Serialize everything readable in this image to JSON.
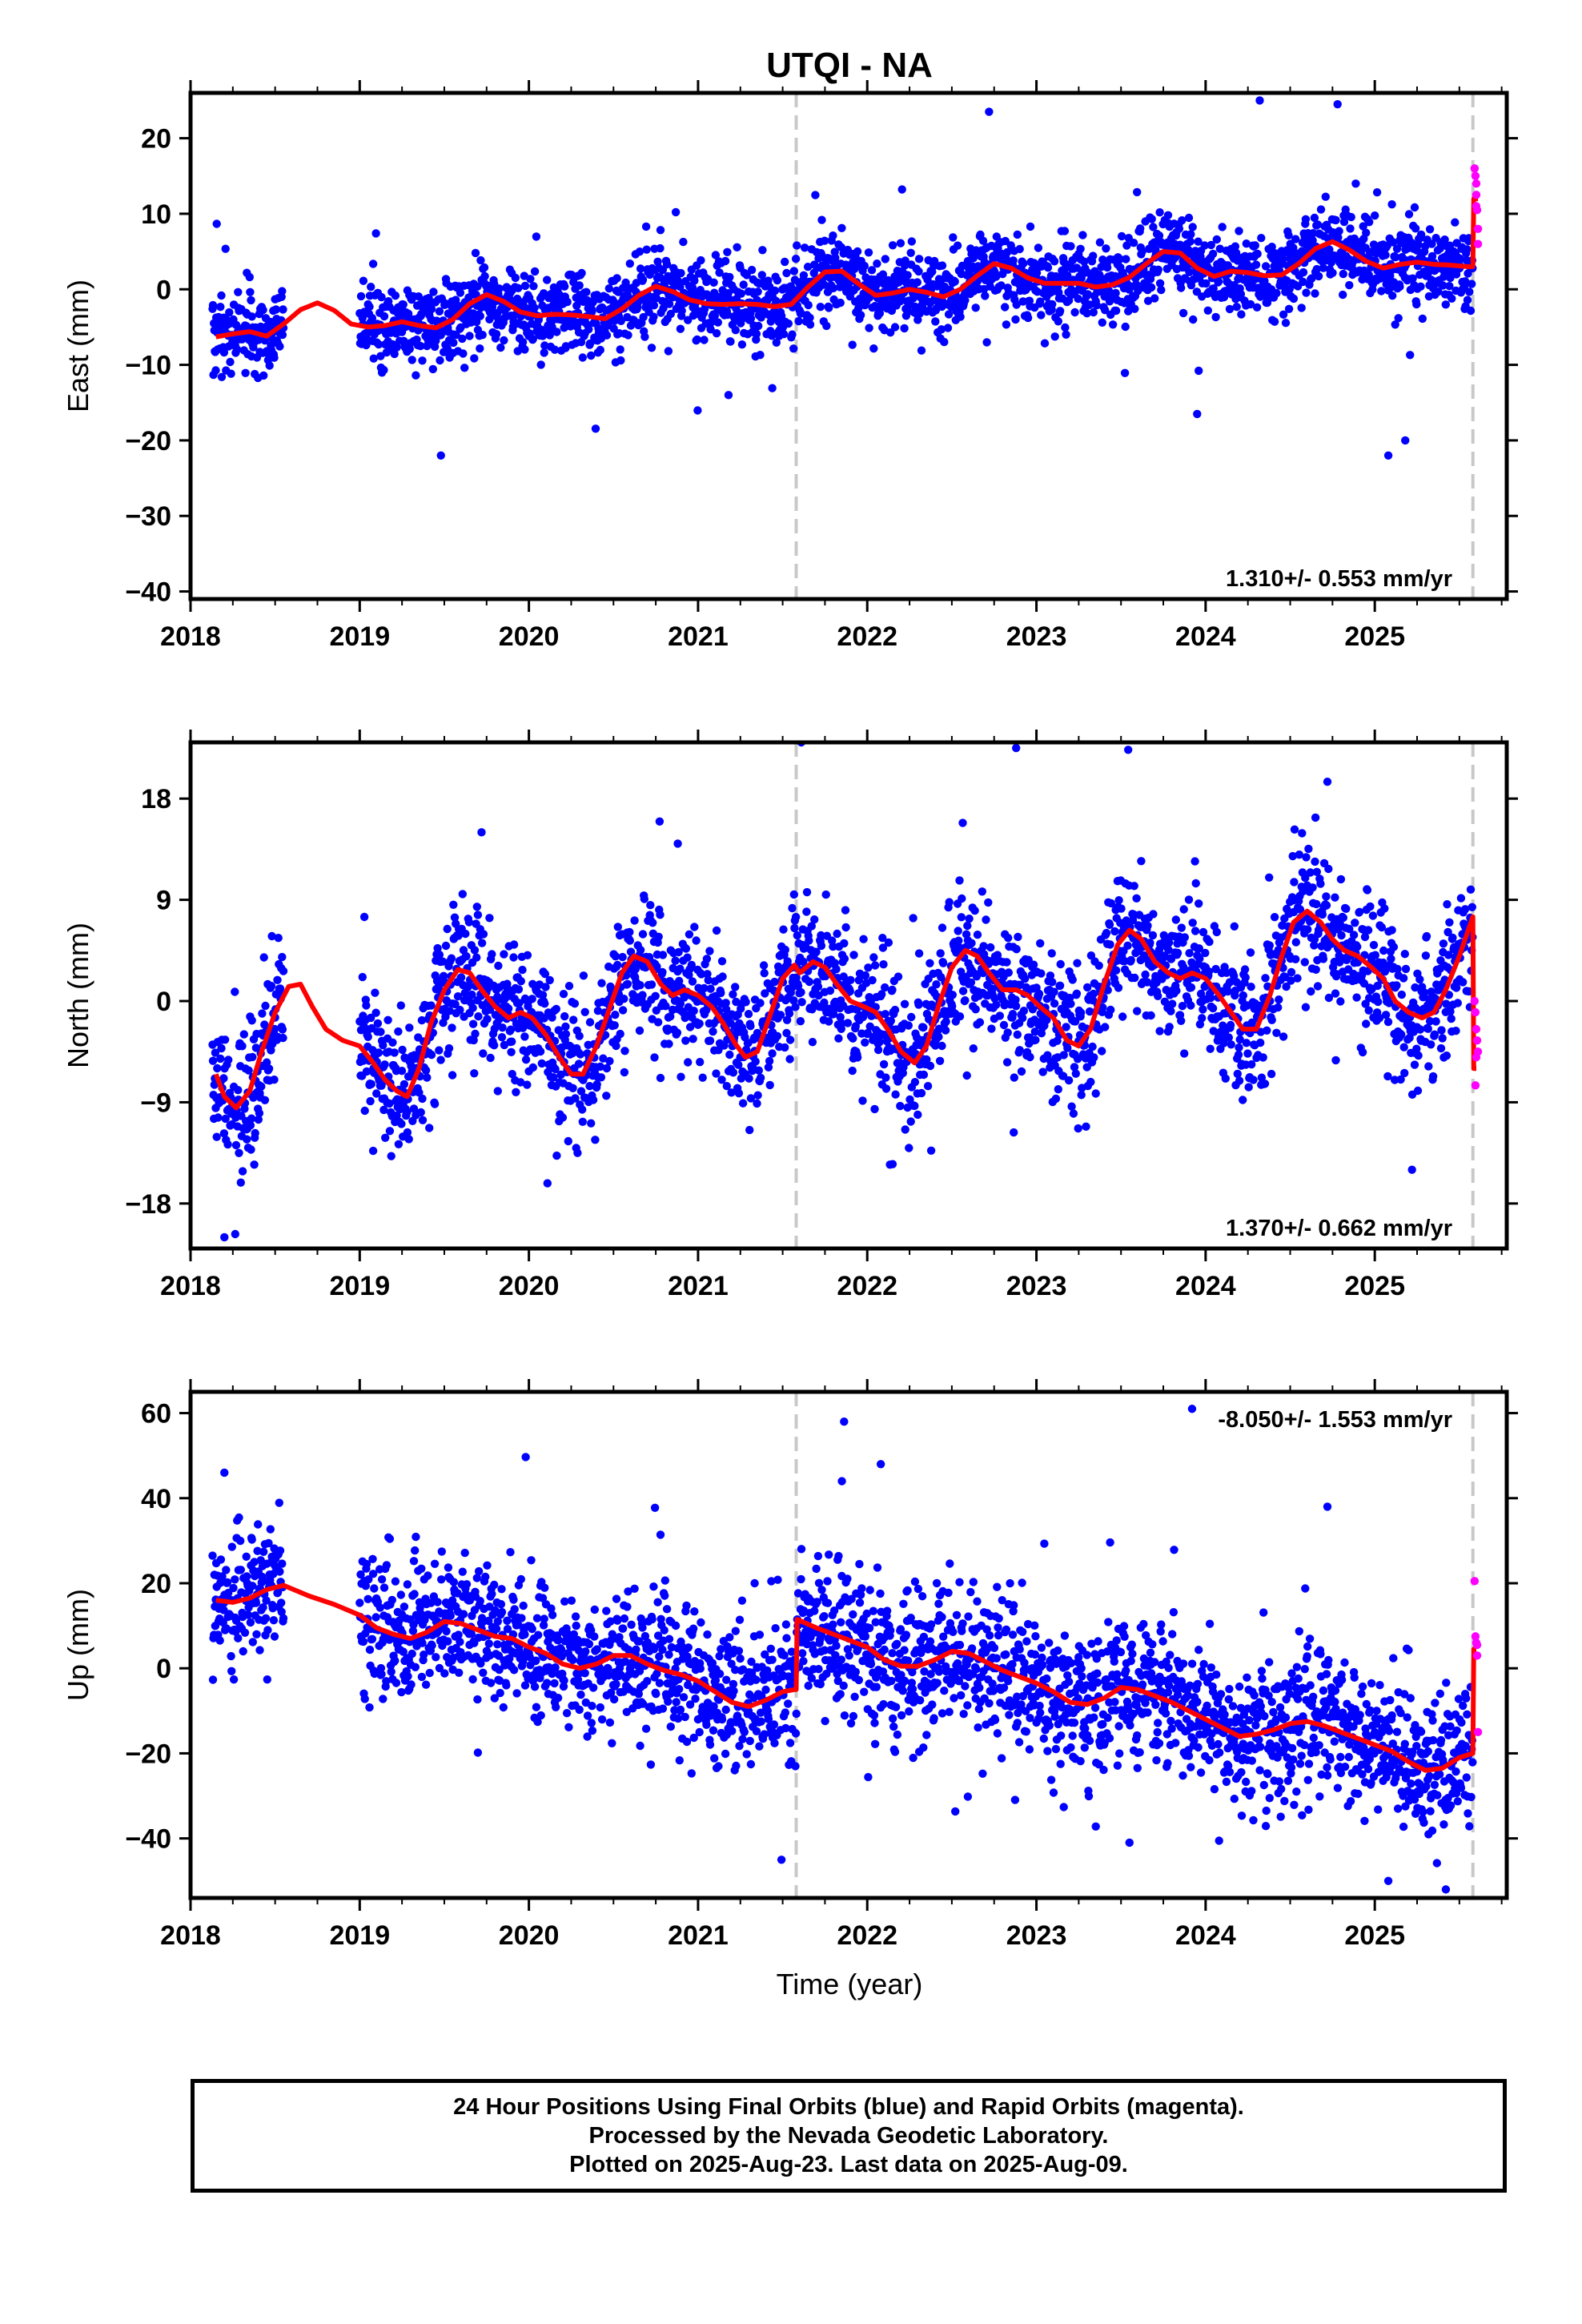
{
  "title": "UTQI - NA",
  "xlabel": "Time (year)",
  "caption": [
    "24 Hour Positions Using Final Orbits (blue) and Rapid Orbits (magenta).",
    "Processed by the Nevada Geodetic Laboratory.",
    "Plotted on 2025-Aug-23. Last data on 2025-Aug-09."
  ],
  "colors": {
    "final": "#0000ff",
    "rapid": "#ff00ff",
    "model": "#ff0000",
    "break_line": "#c8c8c8",
    "axis": "#000000"
  },
  "chart_data": [
    {
      "type": "scatter",
      "component": "east",
      "ylabel": "East (mm)",
      "rate_label": "1.310+/- 0.553 mm/yr",
      "xlim": [
        2018.0,
        2025.78
      ],
      "ylim": [
        -41,
        26
      ],
      "yticks": [
        -40,
        -30,
        -20,
        -10,
        0,
        10,
        20
      ],
      "xticks": [
        2018,
        2019,
        2020,
        2021,
        2022,
        2023,
        2024,
        2025
      ],
      "breaks": [
        2021.58,
        2025.58
      ],
      "model": {
        "x": [
          2018.15,
          2018.25,
          2018.35,
          2018.45,
          2018.55,
          2018.65,
          2018.75,
          2018.85,
          2018.95,
          2019.05,
          2019.15,
          2019.25,
          2019.35,
          2019.45,
          2019.55,
          2019.65,
          2019.75,
          2019.85,
          2019.95,
          2020.05,
          2020.15,
          2020.25,
          2020.35,
          2020.45,
          2020.55,
          2020.65,
          2020.75,
          2020.85,
          2020.95,
          2021.05,
          2021.15,
          2021.25,
          2021.35,
          2021.45,
          2021.55,
          2021.65,
          2021.75,
          2021.85,
          2021.95,
          2022.05,
          2022.15,
          2022.25,
          2022.35,
          2022.45,
          2022.55,
          2022.65,
          2022.75,
          2022.85,
          2022.95,
          2023.05,
          2023.15,
          2023.25,
          2023.35,
          2023.45,
          2023.55,
          2023.65,
          2023.75,
          2023.85,
          2023.95,
          2024.05,
          2024.15,
          2024.25,
          2024.35,
          2024.45,
          2024.55,
          2024.65,
          2024.75,
          2024.85,
          2024.95,
          2025.05,
          2025.15,
          2025.25,
          2025.35,
          2025.45,
          2025.55,
          2025.58,
          2025.585,
          2025.61
        ],
        "y": [
          -6.3,
          -5.9,
          -5.6,
          -6.2,
          -4.6,
          -2.7,
          -1.8,
          -2.8,
          -4.6,
          -5.0,
          -4.8,
          -4.3,
          -4.8,
          -5.1,
          -4.0,
          -1.9,
          -0.7,
          -1.6,
          -3.0,
          -3.5,
          -3.3,
          -3.4,
          -3.6,
          -3.9,
          -2.6,
          -0.8,
          0.4,
          -0.3,
          -1.4,
          -1.9,
          -2.0,
          -1.9,
          -2.0,
          -2.3,
          -2.0,
          0.3,
          2.3,
          2.4,
          0.7,
          -0.8,
          -0.5,
          0.0,
          -0.4,
          -1.0,
          0.0,
          1.8,
          3.4,
          2.8,
          1.5,
          0.8,
          0.8,
          0.8,
          0.3,
          0.6,
          1.6,
          3.4,
          5.0,
          4.8,
          2.8,
          1.7,
          2.4,
          2.2,
          1.8,
          1.9,
          3.4,
          5.4,
          6.3,
          5.2,
          3.7,
          2.8,
          3.3,
          3.6,
          3.3,
          3.2,
          3.0,
          3.0,
          12.0,
          12.0
        ]
      },
      "rapid": {
        "x": [
          2025.59,
          2025.595,
          2025.6,
          2025.6,
          2025.605,
          2025.61,
          2025.61,
          2025.6
        ],
        "y": [
          16.0,
          15.0,
          14.0,
          12.5,
          10.5,
          8.0,
          6.0,
          11.0
        ]
      },
      "notable_points": {
        "x": [
          2019.48,
          2024.32,
          2024.78,
          2025.08,
          2021.18,
          2023.95,
          2025.18,
          2022.72
        ],
        "y": [
          -22.0,
          25.0,
          24.5,
          -22.0,
          -14.0,
          -16.5,
          -20.0,
          23.5
        ]
      }
    },
    {
      "type": "scatter",
      "component": "north",
      "ylabel": "North (mm)",
      "rate_label": "1.370+/- 0.662 mm/yr",
      "xlim": [
        2018.0,
        2025.78
      ],
      "ylim": [
        -22,
        23
      ],
      "yticks": [
        -18,
        -9,
        0,
        9,
        18
      ],
      "xticks": [
        2018,
        2019,
        2020,
        2021,
        2022,
        2023,
        2024,
        2025
      ],
      "breaks": [
        2021.58,
        2025.58
      ],
      "model": {
        "x": [
          2018.15,
          2018.2,
          2018.27,
          2018.35,
          2018.42,
          2018.5,
          2018.58,
          2018.65,
          2018.72,
          2018.8,
          2018.9,
          2019.0,
          2019.08,
          2019.15,
          2019.22,
          2019.28,
          2019.35,
          2019.42,
          2019.5,
          2019.58,
          2019.65,
          2019.72,
          2019.8,
          2019.88,
          2019.95,
          2020.02,
          2020.1,
          2020.18,
          2020.25,
          2020.32,
          2020.4,
          2020.48,
          2020.55,
          2020.62,
          2020.7,
          2020.78,
          2020.85,
          2020.92,
          2021.0,
          2021.08,
          2021.15,
          2021.22,
          2021.28,
          2021.35,
          2021.42,
          2021.5,
          2021.57,
          2021.6,
          2021.68,
          2021.75,
          2021.82,
          2021.9,
          2021.98,
          2022.05,
          2022.12,
          2022.2,
          2022.28,
          2022.35,
          2022.42,
          2022.5,
          2022.58,
          2022.65,
          2022.72,
          2022.8,
          2022.88,
          2022.95,
          2023.02,
          2023.1,
          2023.18,
          2023.25,
          2023.32,
          2023.4,
          2023.48,
          2023.55,
          2023.62,
          2023.7,
          2023.78,
          2023.85,
          2023.92,
          2024.0,
          2024.08,
          2024.15,
          2024.22,
          2024.3,
          2024.38,
          2024.45,
          2024.52,
          2024.6,
          2024.68,
          2024.75,
          2024.82,
          2024.9,
          2024.98,
          2025.05,
          2025.12,
          2025.2,
          2025.28,
          2025.35,
          2025.42,
          2025.5,
          2025.58,
          2025.585,
          2025.6
        ],
        "y": [
          -6.5,
          -8.5,
          -9.5,
          -8.0,
          -4.5,
          -1.0,
          1.3,
          1.5,
          -0.5,
          -2.5,
          -3.5,
          -4.0,
          -5.5,
          -7.0,
          -8.0,
          -8.5,
          -6.0,
          -2.0,
          1.0,
          2.8,
          2.5,
          1.0,
          -0.5,
          -1.5,
          -1.0,
          -1.5,
          -3.0,
          -5.0,
          -6.5,
          -6.5,
          -4.0,
          -0.5,
          2.5,
          4.0,
          3.5,
          1.5,
          0.5,
          1.0,
          0.5,
          -0.5,
          -2.0,
          -3.8,
          -5.0,
          -4.5,
          -1.5,
          2.0,
          3.2,
          2.5,
          3.5,
          3.0,
          1.5,
          0.0,
          -0.5,
          -1.0,
          -2.5,
          -4.5,
          -5.5,
          -4.0,
          -0.5,
          3.0,
          4.5,
          4.0,
          2.5,
          1.0,
          1.0,
          0.5,
          -0.5,
          -1.5,
          -3.5,
          -4.0,
          -2.5,
          1.5,
          5.0,
          6.3,
          5.5,
          3.5,
          2.5,
          2.0,
          2.5,
          2.0,
          0.5,
          -1.0,
          -2.5,
          -2.5,
          0.5,
          4.0,
          7.0,
          8.0,
          7.0,
          5.5,
          4.5,
          4.0,
          3.0,
          2.0,
          0.0,
          -1.0,
          -1.5,
          -1.0,
          1.0,
          4.0,
          7.5,
          -6.0,
          -6.0
        ]
      },
      "rapid": {
        "x": [
          2025.59,
          2025.595,
          2025.6,
          2025.605,
          2025.61,
          2025.6,
          2025.595
        ],
        "y": [
          0.0,
          -1.0,
          -2.5,
          -3.5,
          -4.5,
          -5.0,
          -7.5
        ]
      },
      "notable_points": {
        "x": [
          2021.61,
          2018.2,
          2022.88,
          2024.72,
          2025.22,
          2019.72,
          2022.15,
          2020.88
        ],
        "y": [
          23.0,
          -21.0,
          22.5,
          19.5,
          -15.0,
          15.0,
          -14.5,
          14.0
        ]
      }
    },
    {
      "type": "scatter",
      "component": "up",
      "ylabel": "Up (mm)",
      "rate_label": "-8.050+/- 1.553 mm/yr",
      "xlim": [
        2018.0,
        2025.78
      ],
      "ylim": [
        -54,
        65
      ],
      "yticks": [
        -40,
        -20,
        0,
        20,
        40,
        60
      ],
      "xticks": [
        2018,
        2019,
        2020,
        2021,
        2022,
        2023,
        2024,
        2025
      ],
      "breaks": [
        2021.58,
        2025.58
      ],
      "model": {
        "x": [
          2018.15,
          2018.25,
          2018.35,
          2018.45,
          2018.55,
          2018.7,
          2018.85,
          2019.0,
          2019.1,
          2019.2,
          2019.3,
          2019.4,
          2019.5,
          2019.6,
          2019.7,
          2019.8,
          2019.9,
          2020.0,
          2020.1,
          2020.2,
          2020.3,
          2020.4,
          2020.5,
          2020.6,
          2020.7,
          2020.8,
          2020.9,
          2021.0,
          2021.1,
          2021.2,
          2021.3,
          2021.4,
          2021.5,
          2021.57,
          2021.58,
          2021.585,
          2021.7,
          2021.8,
          2021.9,
          2022.0,
          2022.1,
          2022.2,
          2022.3,
          2022.4,
          2022.5,
          2022.6,
          2022.7,
          2022.8,
          2022.9,
          2023.0,
          2023.1,
          2023.2,
          2023.3,
          2023.4,
          2023.5,
          2023.6,
          2023.7,
          2023.8,
          2023.9,
          2024.0,
          2024.1,
          2024.2,
          2024.3,
          2024.4,
          2024.5,
          2024.6,
          2024.7,
          2024.8,
          2024.9,
          2025.0,
          2025.1,
          2025.2,
          2025.3,
          2025.4,
          2025.5,
          2025.58,
          2025.585,
          2025.6
        ],
        "y": [
          16.0,
          15.5,
          16.5,
          18.5,
          19.5,
          17.0,
          15.0,
          12.5,
          9.5,
          8.0,
          7.0,
          8.5,
          11.0,
          10.5,
          9.0,
          7.5,
          7.0,
          5.0,
          3.5,
          1.0,
          0.0,
          1.0,
          3.0,
          3.0,
          1.0,
          -0.5,
          -1.5,
          -3.0,
          -5.5,
          -8.0,
          -9.0,
          -7.5,
          -5.5,
          -5.0,
          -5.0,
          11.5,
          9.5,
          8.0,
          6.5,
          5.0,
          2.0,
          0.5,
          0.5,
          2.0,
          4.0,
          3.5,
          1.5,
          -0.5,
          -2.0,
          -3.5,
          -5.5,
          -8.0,
          -8.5,
          -7.0,
          -4.5,
          -5.0,
          -6.5,
          -8.0,
          -10.0,
          -12.0,
          -14.0,
          -16.0,
          -15.5,
          -14.5,
          -13.0,
          -12.5,
          -13.5,
          -15.0,
          -16.5,
          -18.0,
          -19.5,
          -22.0,
          -24.0,
          -23.5,
          -21.0,
          -20.0,
          4.5,
          4.5
        ]
      },
      "rapid": {
        "x": [
          2025.59,
          2025.595,
          2025.6,
          2025.605,
          2025.61,
          2025.605
        ],
        "y": [
          20.5,
          7.5,
          6.0,
          5.5,
          -15.0,
          3.0
        ]
      },
      "notable_points": {
        "x": [
          2023.92,
          2022.08,
          2018.2,
          2023.55,
          2025.08,
          2025.42,
          2021.85,
          2024.72
        ],
        "y": [
          61.0,
          48.0,
          46.0,
          -41.0,
          -50.0,
          -52.0,
          44.0,
          38.0
        ]
      }
    }
  ]
}
